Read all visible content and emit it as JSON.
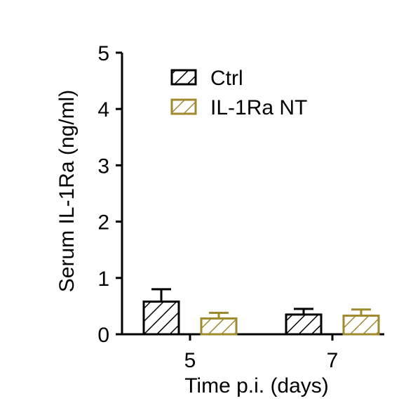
{
  "chart_data": {
    "type": "bar",
    "title": "",
    "xlabel": "Time p.i. (days)",
    "ylabel": "Serum IL-1Ra (ng/ml)",
    "categories": [
      "5",
      "7"
    ],
    "ylim": [
      0,
      5
    ],
    "yticks": [
      "0",
      "1",
      "2",
      "3",
      "4",
      "5"
    ],
    "series": [
      {
        "name": "Ctrl",
        "values": [
          0.58,
          0.35
        ],
        "error": [
          0.22,
          0.1
        ],
        "color": "#000000",
        "pattern": "hatched"
      },
      {
        "name": "IL-1Ra NT",
        "values": [
          0.28,
          0.33
        ],
        "error": [
          0.1,
          0.11
        ],
        "color": "#a08a2e",
        "pattern": "hatched"
      }
    ],
    "legend_position": "top-center",
    "grid": false
  }
}
